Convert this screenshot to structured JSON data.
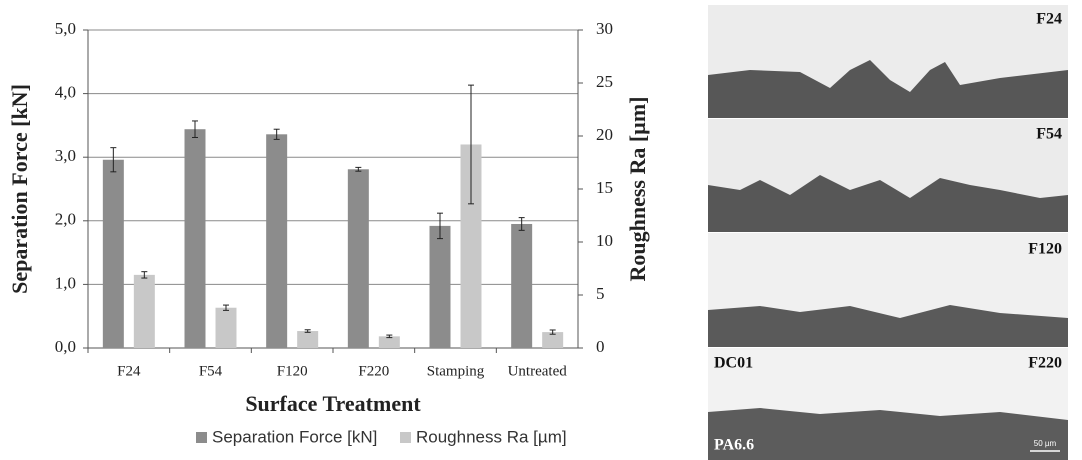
{
  "chart_data": {
    "type": "bar",
    "ylabel": "Separation Force [kN]",
    "y2label": "Roughness Ra [µm]",
    "xlabel": "Surface Treatment",
    "categories": [
      "F24",
      "F54",
      "F120",
      "F220",
      "Stamping",
      "Untreated"
    ],
    "series": [
      {
        "name": "Separation Force [kN]",
        "color": "#8c8c8c",
        "values": [
          2.96,
          3.44,
          3.36,
          2.81,
          1.92,
          1.95
        ],
        "errors": [
          0.19,
          0.13,
          0.08,
          0.03,
          0.2,
          0.1
        ]
      },
      {
        "name": "Roughness Ra [µm]",
        "color": "#c8c8c8",
        "axis": "y2",
        "values": [
          6.9,
          3.8,
          1.6,
          1.1,
          19.2,
          1.5
        ],
        "errors": [
          0.3,
          0.25,
          0.12,
          0.12,
          5.6,
          0.2
        ]
      }
    ],
    "ylim": [
      0,
      5
    ],
    "yticks": [
      {
        "value": 0,
        "label": "0,0"
      },
      {
        "value": 1,
        "label": "1,0"
      },
      {
        "value": 2,
        "label": "2,0"
      },
      {
        "value": 3,
        "label": "3,0"
      },
      {
        "value": 4,
        "label": "4,0"
      },
      {
        "value": 5,
        "label": "5,0"
      }
    ],
    "y2lim": [
      0,
      30
    ],
    "y2ticks": [
      0,
      5,
      10,
      15,
      20,
      25,
      30
    ],
    "grid": true
  },
  "micrographs": {
    "panels": [
      "F24",
      "F54",
      "F120",
      "F220"
    ],
    "material_top": "DC01",
    "material_bottom": "PA6.6",
    "scale_bar": "50 µm"
  }
}
